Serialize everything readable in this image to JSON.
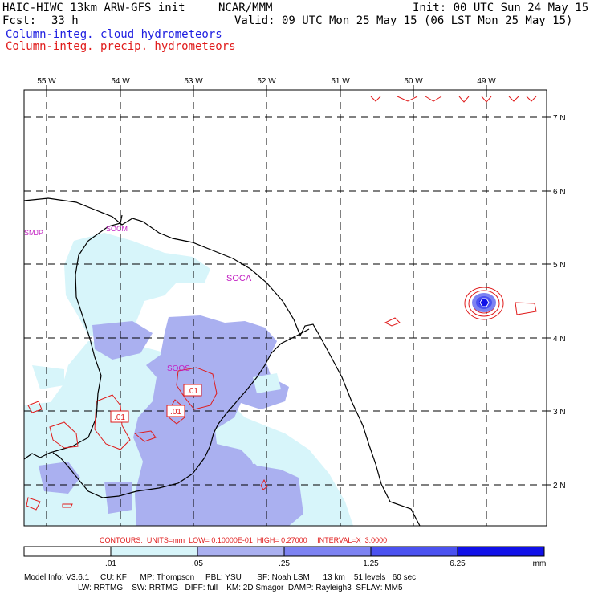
{
  "header": {
    "model_title": "HAIC-HIWC 13km ARW-GFS init",
    "org": "NCAR/MMM",
    "init": "Init: 00 UTC Sun 24 May 15",
    "fcst_label": "Fcst:",
    "fcst_value": "33 h",
    "valid": "Valid: 09 UTC Mon 25 May 15 (06 LST Mon 25 May 15)",
    "field1": "Column-integ. cloud hydrometeors",
    "field2": "Column-integ. precip. hydrometeors"
  },
  "colors": {
    "field1": "#1d1de0",
    "field2": "#e01b1b",
    "shade": [
      "#ffffff",
      "#d7f5fa",
      "#aab0f0",
      "#7d83f2",
      "#4b52f0",
      "#1010e8"
    ]
  },
  "map": {
    "lon_labels": [
      "55 W",
      "54 W",
      "53 W",
      "52 W",
      "51 W",
      "50 W",
      "49 W"
    ],
    "lat_labels": [
      "7 N",
      "6 N",
      "5 N",
      "4 N",
      "3 N",
      "2 N"
    ],
    "stations": [
      "SMJP",
      "SOCM",
      "SOCA",
      "SOOS"
    ],
    "contour_labels": [
      ".01",
      ".01",
      ".01"
    ]
  },
  "contour_info": "CONTOURS:  UNITS=mm  LOW= 0.10000E-01  HIGH= 0.27000     INTERVAL=X  3.0000",
  "colorbar": {
    "ticks": [
      ".01",
      ".05",
      ".25",
      "1.25",
      "6.25"
    ],
    "units": "mm"
  },
  "model_info": {
    "line1": "Model Info: V3.6.1     CU: KF      MP: Thompson     PBL: YSU       SF: Noah LSM      13 km    51 levels   60 sec",
    "line2": "LW: RRTMG    SW: RRTMG   DIFF: full    KM: 2D Smagor  DAMP: Rayleigh3  SFLAY: MM5"
  }
}
